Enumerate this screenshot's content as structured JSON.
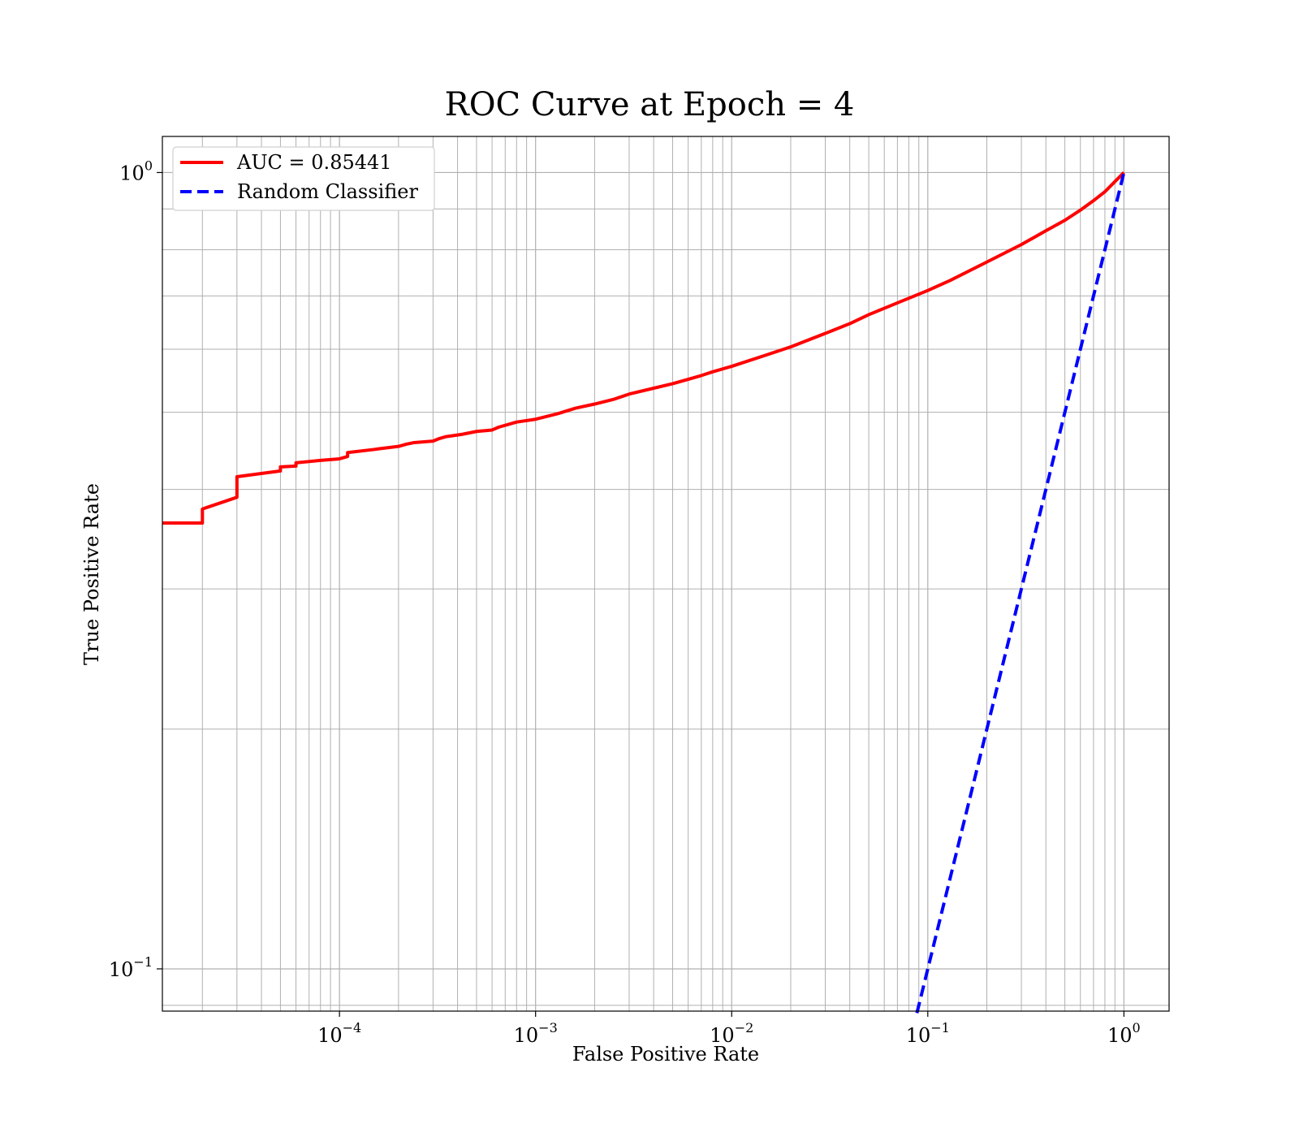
{
  "chart_data": {
    "type": "line",
    "title": "ROC Curve at Epoch = 4",
    "xlabel": "False Positive Rate",
    "ylabel": "True Positive Rate",
    "xscale": "log",
    "yscale": "log",
    "xlim": [
      1.25e-05,
      1.7
    ],
    "ylim": [
      0.0885,
      1.11
    ],
    "grid": "major and minor",
    "legend_position": "upper-left",
    "x_ticks": [
      {
        "base": "10",
        "exp": "−4",
        "value": 0.0001
      },
      {
        "base": "10",
        "exp": "−3",
        "value": 0.001
      },
      {
        "base": "10",
        "exp": "−2",
        "value": 0.01
      },
      {
        "base": "10",
        "exp": "−1",
        "value": 0.1
      },
      {
        "base": "10",
        "exp": "0",
        "value": 1
      }
    ],
    "y_ticks": [
      {
        "base": "10",
        "exp": "−1",
        "value": 0.1
      },
      {
        "base": "10",
        "exp": "0",
        "value": 1
      }
    ],
    "series": [
      {
        "name": "AUC = 0.85441",
        "color": "#ff0000",
        "style": "solid",
        "x": [
          1.25e-05,
          2e-05,
          2e-05,
          3e-05,
          3e-05,
          5e-05,
          5e-05,
          6e-05,
          6e-05,
          8e-05,
          0.0001,
          0.00011,
          0.00011,
          0.00015,
          0.00016,
          0.0002,
          0.00022,
          0.00024,
          0.0003,
          0.00032,
          0.00035,
          0.00042,
          0.0005,
          0.0006,
          0.00065,
          0.0008,
          0.001,
          0.0013,
          0.0016,
          0.002,
          0.0025,
          0.003,
          0.004,
          0.005,
          0.006,
          0.007,
          0.008,
          0.01,
          0.015,
          0.02,
          0.03,
          0.04,
          0.05,
          0.07,
          0.1,
          0.13,
          0.2,
          0.3,
          0.4,
          0.5,
          0.6,
          0.7,
          0.8,
          1.0
        ],
        "y": [
          0.363,
          0.363,
          0.378,
          0.391,
          0.415,
          0.422,
          0.427,
          0.428,
          0.432,
          0.435,
          0.437,
          0.44,
          0.445,
          0.449,
          0.45,
          0.453,
          0.456,
          0.458,
          0.46,
          0.463,
          0.466,
          0.469,
          0.473,
          0.475,
          0.479,
          0.486,
          0.49,
          0.498,
          0.506,
          0.512,
          0.519,
          0.527,
          0.536,
          0.543,
          0.55,
          0.556,
          0.562,
          0.571,
          0.59,
          0.604,
          0.628,
          0.646,
          0.663,
          0.686,
          0.711,
          0.732,
          0.772,
          0.812,
          0.845,
          0.871,
          0.897,
          0.922,
          0.946,
          1.0
        ]
      },
      {
        "name": "Random Classifier",
        "color": "#0000ff",
        "style": "dashed",
        "x": [
          0.088,
          1.0
        ],
        "y": [
          0.088,
          1.0
        ]
      }
    ]
  }
}
